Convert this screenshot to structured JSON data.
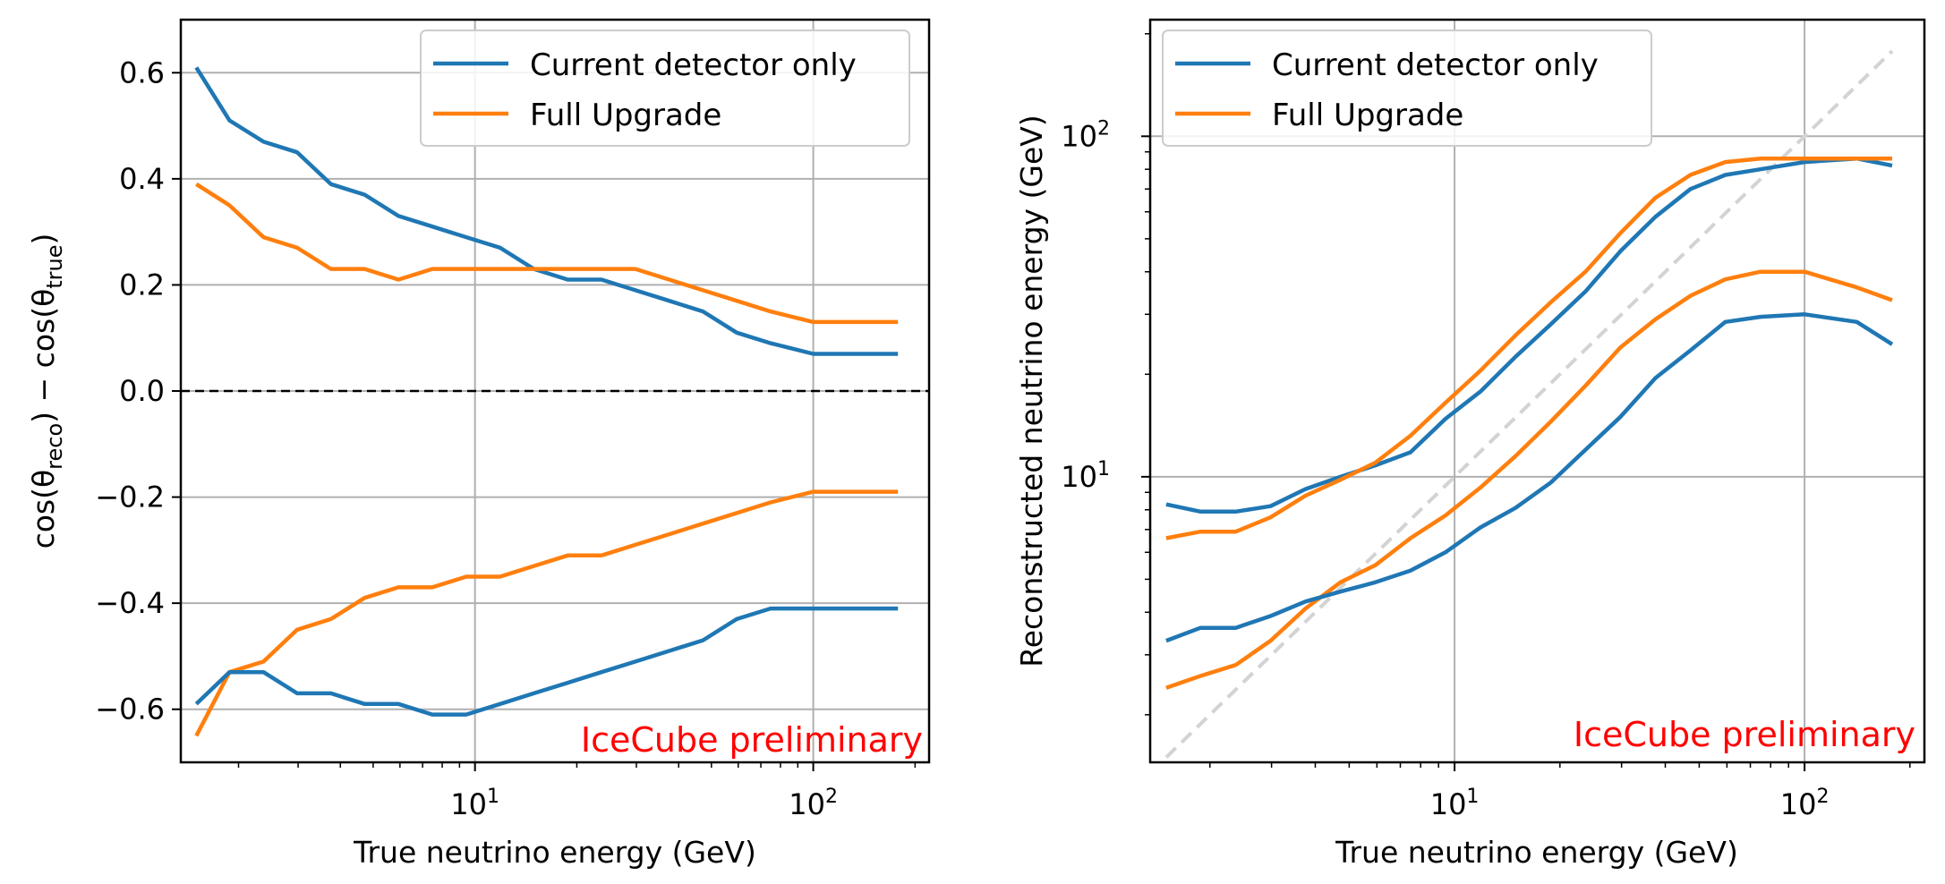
{
  "chart_data": [
    {
      "type": "line",
      "xscale": "log",
      "xlim": [
        1.35,
        220
      ],
      "ylim": [
        -0.7,
        0.7
      ],
      "xlabel": "True neutrino energy (GeV)",
      "ylabel_parts": {
        "a": "cos(θ",
        "a_sub": "reco",
        "b": ") − cos(θ",
        "b_sub": "true",
        "c": ")"
      },
      "yticks": [
        "0.6",
        "0.4",
        "0.2",
        "0.0",
        "−0.2",
        "−0.4",
        "−0.6"
      ],
      "ytick_values": [
        0.6,
        0.4,
        0.2,
        0.0,
        -0.2,
        -0.4,
        -0.6
      ],
      "xticks": [
        {
          "value": 10,
          "base": "10",
          "exp": "1"
        },
        {
          "value": 100,
          "base": "10",
          "exp": "2"
        }
      ],
      "hline": 0.0,
      "annotation": "IceCube preliminary",
      "annotation_color": "#ff0000",
      "legend": [
        {
          "label": "Current detector only",
          "color": "#1f77b4"
        },
        {
          "label": "Full Upgrade",
          "color": "#ff7f0e"
        }
      ],
      "x": [
        1.5,
        1.88,
        2.37,
        2.98,
        3.75,
        4.72,
        5.94,
        7.48,
        9.42,
        11.86,
        14.93,
        18.8,
        23.66,
        29.8,
        37.5,
        47.2,
        59.4,
        74.8,
        100,
        178
      ],
      "series": [
        {
          "name": "Current detector only (upper)",
          "color": "#1f77b4",
          "values": [
            0.61,
            0.51,
            0.47,
            0.45,
            0.39,
            0.37,
            0.33,
            0.31,
            0.29,
            0.27,
            0.23,
            0.21,
            0.21,
            0.19,
            0.17,
            0.15,
            0.11,
            0.09,
            0.07,
            0.07
          ]
        },
        {
          "name": "Full Upgrade (upper)",
          "color": "#ff7f0e",
          "values": [
            0.39,
            0.35,
            0.29,
            0.27,
            0.23,
            0.23,
            0.21,
            0.23,
            0.23,
            0.23,
            0.23,
            0.23,
            0.23,
            0.23,
            0.21,
            0.19,
            0.17,
            0.15,
            0.13,
            0.13
          ]
        },
        {
          "name": "Full Upgrade (lower)",
          "color": "#ff7f0e",
          "values": [
            -0.65,
            -0.53,
            -0.51,
            -0.45,
            -0.43,
            -0.39,
            -0.37,
            -0.37,
            -0.35,
            -0.35,
            -0.33,
            -0.31,
            -0.31,
            -0.29,
            -0.27,
            -0.25,
            -0.23,
            -0.21,
            -0.19,
            -0.19
          ]
        },
        {
          "name": "Current detector only (lower)",
          "color": "#1f77b4",
          "values": [
            -0.59,
            -0.53,
            -0.53,
            -0.57,
            -0.57,
            -0.59,
            -0.59,
            -0.61,
            -0.61,
            -0.59,
            -0.57,
            -0.55,
            -0.53,
            -0.51,
            -0.49,
            -0.47,
            -0.43,
            -0.41,
            -0.41,
            -0.41
          ]
        }
      ]
    },
    {
      "type": "line",
      "xscale": "log",
      "yscale": "log",
      "xlim": [
        1.35,
        220
      ],
      "ylim": [
        1.45,
        220
      ],
      "xlabel": "True neutrino energy (GeV)",
      "ylabel": "Reconstructed neutrino energy (GeV)",
      "yticks": [
        {
          "value": 10,
          "base": "10",
          "exp": "1"
        },
        {
          "value": 100,
          "base": "10",
          "exp": "2"
        }
      ],
      "xticks": [
        {
          "value": 10,
          "base": "10",
          "exp": "1"
        },
        {
          "value": 100,
          "base": "10",
          "exp": "2"
        }
      ],
      "diagonal": {
        "from": 1.5,
        "to": 178,
        "color": "#d3d3d3"
      },
      "annotation": "IceCube preliminary",
      "annotation_color": "#ff0000",
      "legend": [
        {
          "label": "Current detector only",
          "color": "#1f77b4"
        },
        {
          "label": "Full Upgrade",
          "color": "#ff7f0e"
        }
      ],
      "x": [
        1.5,
        1.88,
        2.37,
        2.98,
        3.75,
        4.72,
        5.94,
        7.48,
        9.42,
        11.86,
        14.93,
        18.8,
        23.66,
        29.8,
        37.5,
        47.2,
        59.4,
        74.8,
        100,
        141,
        178
      ],
      "series": [
        {
          "name": "Current detector only (upper)",
          "color": "#1f77b4",
          "values": [
            8.3,
            7.9,
            7.9,
            8.2,
            9.2,
            10.0,
            10.8,
            11.8,
            14.8,
            17.8,
            22.5,
            28.0,
            35.0,
            46.0,
            58.0,
            70.0,
            77.0,
            80.0,
            84.0,
            86.0,
            82.0
          ]
        },
        {
          "name": "Full Upgrade (upper)",
          "color": "#ff7f0e",
          "values": [
            6.6,
            6.9,
            6.9,
            7.6,
            8.8,
            9.8,
            11.0,
            13.2,
            16.5,
            20.5,
            26.0,
            32.5,
            40.0,
            52.0,
            66.0,
            77.0,
            84.0,
            86.0,
            86.0,
            86.0,
            86.0
          ]
        },
        {
          "name": "Full Upgrade (lower)",
          "color": "#ff7f0e",
          "values": [
            2.4,
            2.6,
            2.8,
            3.3,
            4.1,
            4.9,
            5.5,
            6.6,
            7.7,
            9.3,
            11.5,
            14.5,
            18.5,
            24.0,
            29.0,
            34.0,
            38.0,
            40.0,
            40.0,
            36.0,
            33.0
          ]
        },
        {
          "name": "Current detector only (lower)",
          "color": "#1f77b4",
          "values": [
            3.3,
            3.6,
            3.6,
            3.9,
            4.3,
            4.6,
            4.9,
            5.3,
            6.0,
            7.1,
            8.1,
            9.6,
            12.0,
            15.0,
            19.5,
            23.5,
            28.5,
            29.5,
            30.0,
            28.5,
            24.5
          ]
        }
      ]
    }
  ]
}
